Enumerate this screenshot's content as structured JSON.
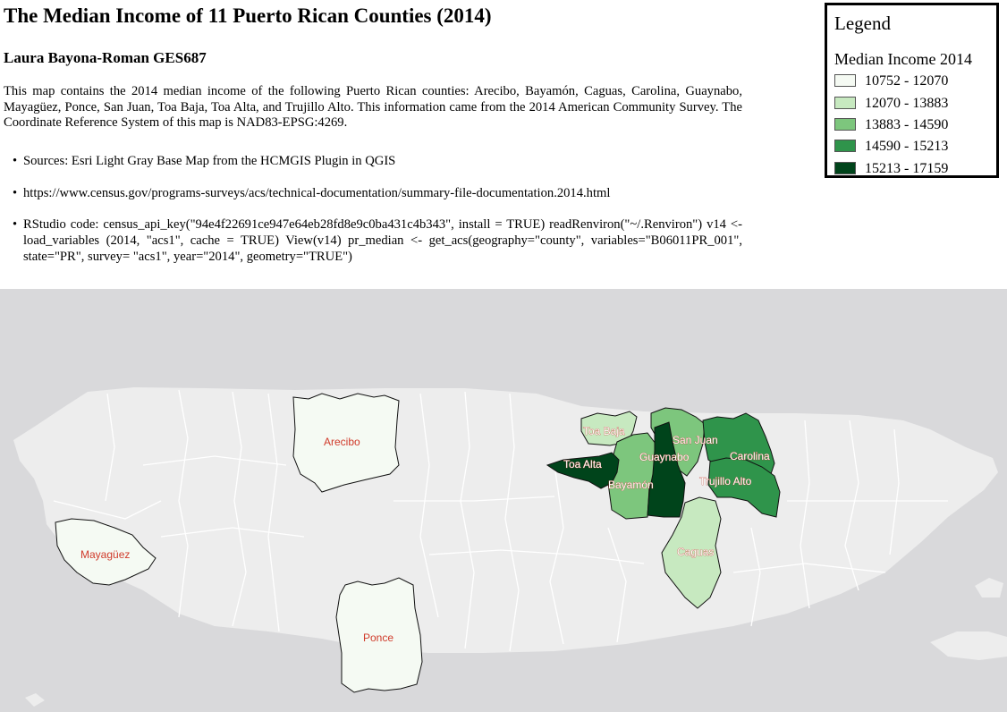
{
  "title": "The Median Income of 11 Puerto Rican Counties (2014)",
  "author": "Laura Bayona-Roman GES687",
  "description": "This map contains the 2014 median income of the following Puerto Rican counties: Arecibo, Bayamón, Caguas, Carolina, Guaynabo, Mayagüez, Ponce, San Juan, Toa Baja, Toa Alta, and Trujillo Alto. This information came from the 2014 American Community Survey. The Coordinate Reference System of this map is NAD83-EPSG:4269.",
  "bullets": [
    "Sources: Esri Light Gray Base Map from the HCMGIS Plugin in QGIS",
    "https://www.census.gov/programs-surveys/acs/technical-documentation/summary-file-documentation.2014.html",
    "RStudio code: census_api_key(\"94e4f22691ce947e64eb28fd8e9c0ba431c4b343\", install = TRUE) readRenviron(\"~/.Renviron\") v14 <- load_variables (2014, \"acs1\", cache = TRUE) View(v14) pr_median <- get_acs(geography=\"county\", variables=\"B06011PR_001\", state=\"PR\", survey= \"acs1\", year=\"2014\", geometry=\"TRUE\")"
  ],
  "legend": {
    "title": "Legend",
    "subtitle": "Median Income 2014",
    "classes": [
      {
        "label": "10752 - 12070",
        "color": "#f5faf3"
      },
      {
        "label": "12070 - 13883",
        "color": "#c7e9c0"
      },
      {
        "label": "13883 - 14590",
        "color": "#7dc67d"
      },
      {
        "label": "14590 - 15213",
        "color": "#2f944b"
      },
      {
        "label": "15213 - 17159",
        "color": "#00441b"
      }
    ]
  },
  "municipalities": [
    {
      "name": "Arecibo",
      "class": 0
    },
    {
      "name": "Mayagüez",
      "class": 0
    },
    {
      "name": "Ponce",
      "class": 0
    },
    {
      "name": "Toa Baja",
      "class": 1
    },
    {
      "name": "Caguas",
      "class": 1
    },
    {
      "name": "San Juan",
      "class": 2
    },
    {
      "name": "Bayamón",
      "class": 2
    },
    {
      "name": "Carolina",
      "class": 3
    },
    {
      "name": "Trujillo Alto",
      "class": 3
    },
    {
      "name": "Toa Alta",
      "class": 4
    },
    {
      "name": "Guaynabo",
      "class": 4
    }
  ],
  "colors": {
    "ocean": "#d9d9db",
    "land": "#ededed",
    "boundary": "#ffffff",
    "label": "#d03a2a"
  }
}
